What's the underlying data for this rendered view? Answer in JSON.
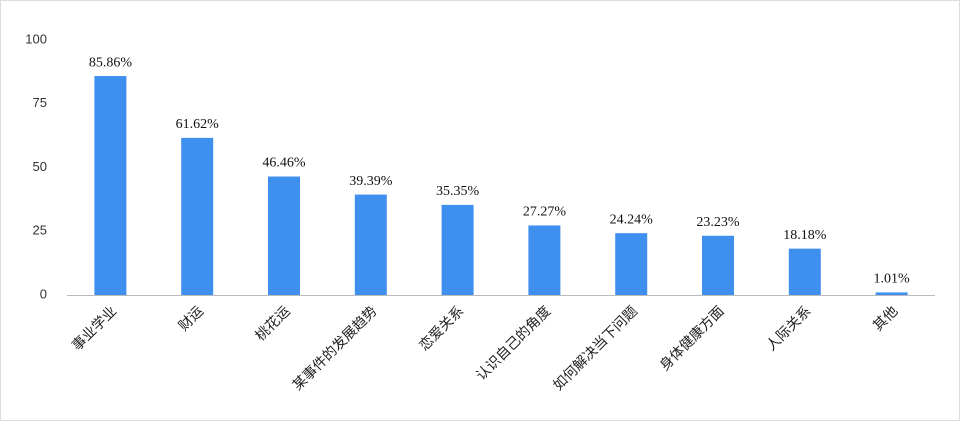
{
  "chart_data": {
    "type": "bar",
    "categories": [
      "事业学业",
      "财运",
      "桃花运",
      "某事件的发展趋势",
      "恋爱关系",
      "认识自己的角度",
      "如何解决当下问题",
      "身体健康方面",
      "人际关系",
      "其他"
    ],
    "values": [
      85.86,
      61.62,
      46.46,
      39.39,
      35.35,
      27.27,
      24.24,
      23.23,
      18.18,
      1.01
    ],
    "value_labels": [
      "85.86%",
      "61.62%",
      "46.46%",
      "39.39%",
      "35.35%",
      "27.27%",
      "24.24%",
      "23.23%",
      "18.18%",
      "1.01%"
    ],
    "color": "#3f8fef",
    "ylim": [
      0,
      100
    ],
    "yticks": [
      0,
      25,
      50,
      75,
      100
    ],
    "grid": false
  }
}
